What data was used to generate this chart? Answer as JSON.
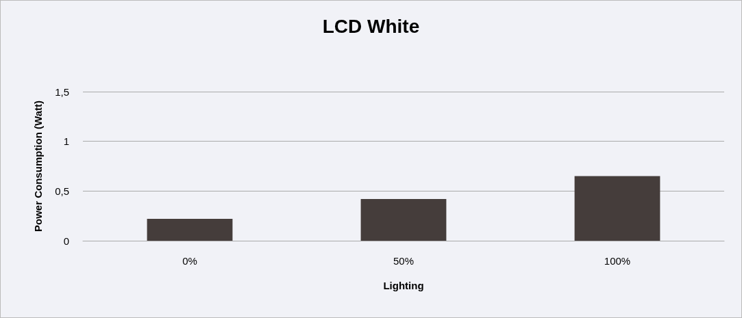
{
  "chart_data": {
    "type": "bar",
    "title": "LCD White",
    "xlabel": "Lighting",
    "ylabel": "Power Consumption (Watt)",
    "categories": [
      "0%",
      "50%",
      "100%"
    ],
    "values": [
      0.22,
      0.42,
      0.65
    ],
    "color": "#453d3b",
    "ylim": [
      0,
      1.5
    ],
    "yticks": [
      0,
      {
        "value": 0.5,
        "label": "0,5"
      },
      1,
      {
        "value": 1.5,
        "label": "1,5"
      }
    ],
    "grid": "y"
  }
}
